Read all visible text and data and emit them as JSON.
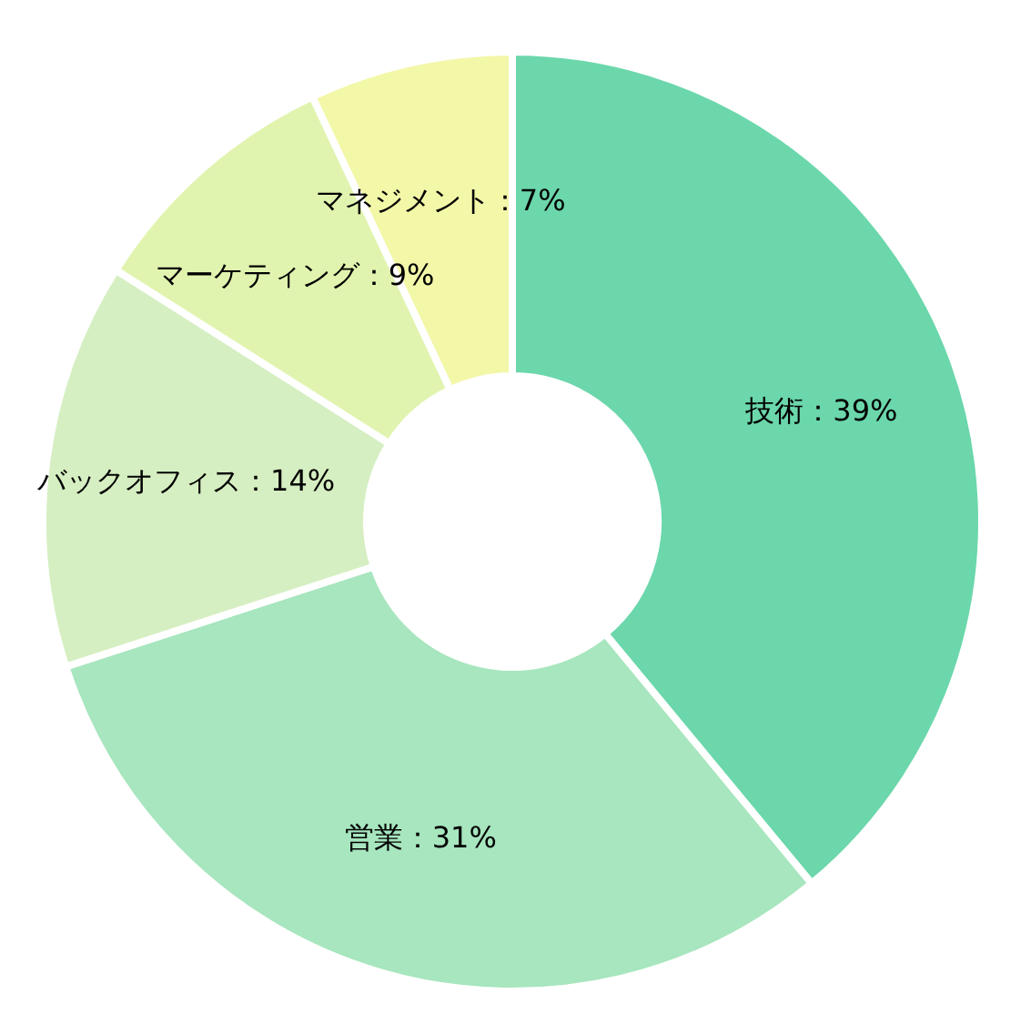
{
  "chart_data": {
    "type": "donut",
    "categories": [
      "技術",
      "営業",
      "バックオフィス",
      "マーケティング",
      "マネジメント"
    ],
    "values": [
      39,
      31,
      14,
      9,
      7
    ],
    "value_labels": [
      "39%",
      "31%",
      "14%",
      "9%",
      "7%"
    ],
    "colors": [
      "#6bd7ab",
      "#a7e6be",
      "#d6efc2",
      "#e1f4af",
      "#f3f7a8"
    ]
  }
}
